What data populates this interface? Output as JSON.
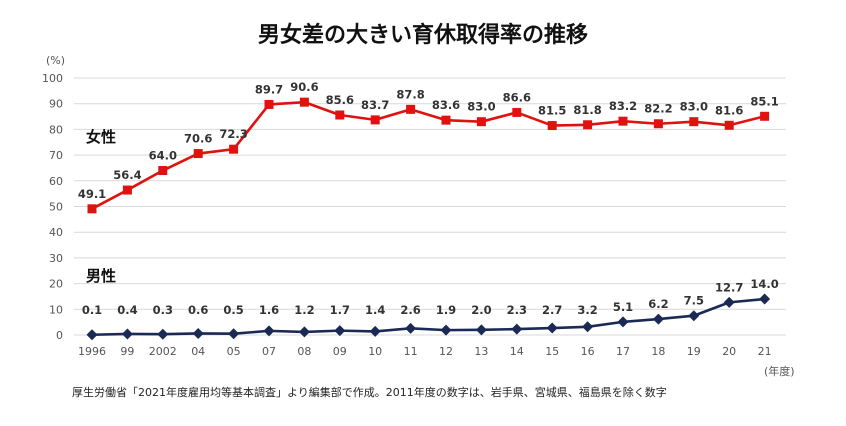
{
  "chart_data": {
    "type": "line",
    "title": "男女差の大きい育休取得率の推移",
    "yunit": "(%)",
    "xunit": "(年度)",
    "x": [
      "1996",
      "99",
      "2002",
      "04",
      "05",
      "07",
      "08",
      "09",
      "10",
      "11",
      "12",
      "13",
      "14",
      "15",
      "16",
      "17",
      "18",
      "19",
      "20",
      "21"
    ],
    "ylim": [
      0,
      100
    ],
    "yticks": [
      0,
      10,
      20,
      30,
      40,
      50,
      60,
      70,
      80,
      90,
      100
    ],
    "grid": true,
    "series": [
      {
        "name": "女性",
        "color": "#e0120f",
        "marker": "square",
        "values": [
          49.1,
          56.4,
          64.0,
          70.6,
          72.3,
          89.7,
          90.6,
          85.6,
          83.7,
          87.8,
          83.6,
          83.0,
          86.6,
          81.5,
          81.8,
          83.2,
          82.2,
          83.0,
          81.6,
          85.1
        ],
        "labels": [
          "49.1",
          "56.4",
          "64.0",
          "70.6",
          "72.3",
          "89.7",
          "90.6",
          "85.6",
          "83.7",
          "87.8",
          "83.6",
          "83.0",
          "86.6",
          "81.5",
          "81.8",
          "83.2",
          "82.2",
          "83.0",
          "81.6",
          "85.1"
        ]
      },
      {
        "name": "男性",
        "color": "#1b2a55",
        "marker": "diamond",
        "values": [
          0.1,
          0.4,
          0.3,
          0.6,
          0.5,
          1.6,
          1.2,
          1.7,
          1.4,
          2.6,
          1.9,
          2.0,
          2.3,
          2.7,
          3.2,
          5.1,
          6.2,
          7.5,
          12.7,
          14.0
        ],
        "labels": [
          "0.1",
          "0.4",
          "0.3",
          "0.6",
          "0.5",
          "1.6",
          "1.2",
          "1.7",
          "1.4",
          "2.6",
          "1.9",
          "2.0",
          "2.3",
          "2.7",
          "3.2",
          "5.1",
          "6.2",
          "7.5",
          "12.7",
          "14.0"
        ]
      }
    ],
    "note": "厚生労働省「2021年度雇用均等基本調査」より編集部で作成。2011年度の数字は、岩手県、宮城県、福島県を除く数字"
  }
}
